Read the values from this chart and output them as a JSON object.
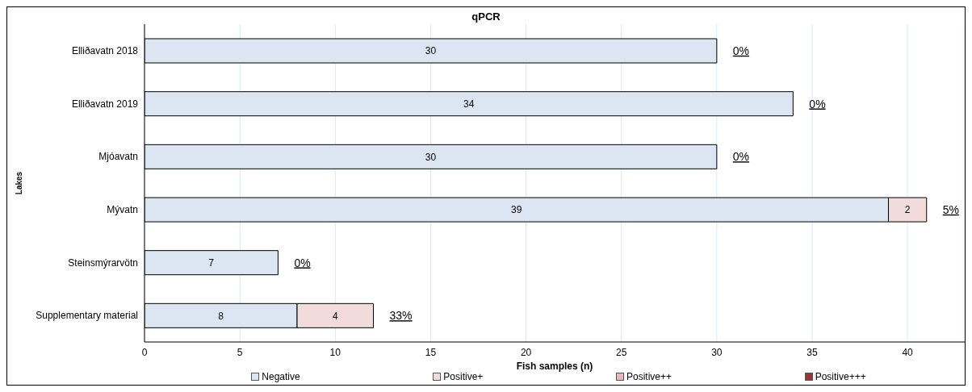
{
  "chart_data": {
    "type": "bar",
    "orientation": "horizontal",
    "stacked": true,
    "title": "qPCR",
    "xlabel": "Fish samples (n)",
    "ylabel": "Lakes",
    "categories": [
      "Elliðavatn 2018",
      "Elliðavatn 2019",
      "Mjóavatn",
      "Mývatn",
      "Steinsmýrarvötn",
      "Supplementary material"
    ],
    "series": [
      {
        "name": "Negative",
        "color": "#dce6f2",
        "values": [
          30,
          34,
          30,
          39,
          7,
          8
        ]
      },
      {
        "name": "Positive+",
        "color": "#f2dcdb",
        "values": [
          null,
          null,
          null,
          2,
          null,
          4
        ]
      },
      {
        "name": "Positive++",
        "color": "#e6b9b8",
        "values": [
          null,
          null,
          null,
          null,
          null,
          null
        ]
      },
      {
        "name": "Positive+++",
        "color": "#953735",
        "values": [
          null,
          null,
          null,
          null,
          null,
          null
        ]
      }
    ],
    "xlim": [
      0,
      43
    ],
    "xticks": [
      0,
      5,
      10,
      15,
      20,
      25,
      30,
      35,
      40
    ],
    "grid": "x",
    "legend": "bottom",
    "data_labels": true,
    "annotations": [
      {
        "text": "0%",
        "x": 30,
        "y": "Elliðavatn 2018"
      },
      {
        "text": "0%",
        "x": 34,
        "y": "Elliðavatn 2019"
      },
      {
        "text": "0%",
        "x": 30,
        "y": "Mjóavatn"
      },
      {
        "text": "5%",
        "x": 41,
        "y": "Mývatn"
      },
      {
        "text": "0%",
        "x": 7,
        "y": "Steinsmýrarvötn"
      },
      {
        "text": "33%",
        "x": 12,
        "y": "Supplementary material"
      }
    ]
  }
}
